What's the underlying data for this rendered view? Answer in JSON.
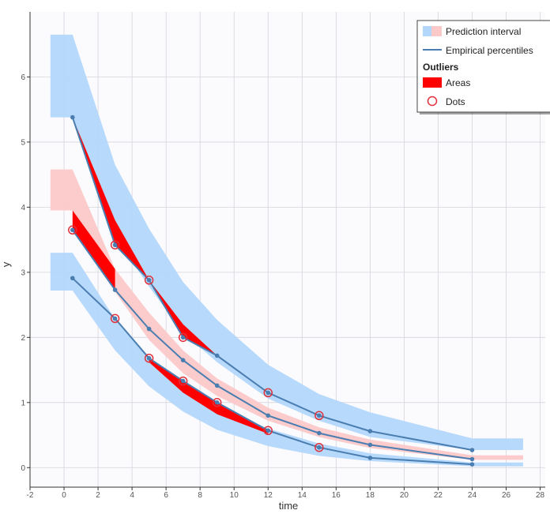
{
  "chart_data": {
    "type": "line",
    "title": "",
    "xlabel": "time",
    "ylabel": "y",
    "xlim": [
      -2,
      28.3
    ],
    "ylim": [
      -0.3,
      7.0
    ],
    "x_ticks": [
      -2,
      0,
      2,
      4,
      6,
      8,
      10,
      12,
      14,
      16,
      18,
      20,
      22,
      24,
      26,
      28
    ],
    "y_ticks": [
      0,
      1,
      2,
      3,
      4,
      5,
      6
    ],
    "grid": true,
    "colors": {
      "upper_lower_band": "#b3d7fb",
      "median_band": "#fcc9c9",
      "percentile_line": "#4a7db0",
      "outlier_area": "#ff0000",
      "outlier_dot": "#e0303a",
      "plot_bg": "#fbfbfe",
      "grid": "#d4d4dc"
    },
    "prediction_interval_bands": [
      {
        "name": "upper",
        "x": [
          -0.8,
          0.5,
          3,
          5,
          7,
          9,
          12,
          15,
          18,
          24,
          27
        ],
        "lo_step": [
          5.38,
          5.38,
          3.55,
          2.78,
          2.07,
          1.62,
          1.06,
          0.72,
          0.47,
          0.27,
          0.27
        ],
        "hi_step": [
          6.65,
          6.65,
          4.65,
          3.67,
          2.85,
          2.27,
          1.58,
          1.13,
          0.85,
          0.45,
          0.45
        ]
      },
      {
        "name": "median",
        "x": [
          -0.8,
          0.5,
          3,
          5,
          7,
          9,
          12,
          15,
          18,
          24,
          27
        ],
        "lo_step": [
          3.95,
          3.95,
          2.7,
          1.96,
          1.45,
          1.1,
          0.72,
          0.47,
          0.3,
          0.12,
          0.12
        ],
        "hi_step": [
          4.58,
          4.58,
          3.05,
          2.38,
          1.8,
          1.37,
          0.92,
          0.62,
          0.43,
          0.19,
          0.19
        ]
      },
      {
        "name": "lower",
        "x": [
          -0.8,
          0.5,
          3,
          5,
          7,
          9,
          12,
          15,
          18,
          24,
          27
        ],
        "lo_step": [
          2.72,
          2.72,
          1.8,
          1.25,
          0.86,
          0.58,
          0.33,
          0.18,
          0.1,
          0.02,
          0.02
        ],
        "hi_step": [
          3.3,
          3.3,
          2.28,
          1.68,
          1.24,
          0.95,
          0.6,
          0.37,
          0.22,
          0.08,
          0.08
        ]
      }
    ],
    "series": [
      {
        "name": "Empirical percentile upper",
        "x": [
          0.5,
          3,
          5,
          7,
          9,
          12,
          15,
          18,
          24
        ],
        "y": [
          5.38,
          3.42,
          2.88,
          2.0,
          1.72,
          1.15,
          0.8,
          0.56,
          0.27
        ]
      },
      {
        "name": "Empirical percentile median",
        "x": [
          0.5,
          3,
          5,
          7,
          9,
          12,
          15,
          18,
          24
        ],
        "y": [
          3.65,
          2.73,
          2.13,
          1.65,
          1.26,
          0.8,
          0.53,
          0.35,
          0.13
        ]
      },
      {
        "name": "Empirical percentile lower",
        "x": [
          0.5,
          3,
          5,
          7,
          9,
          12,
          15,
          18,
          24
        ],
        "y": [
          2.91,
          2.29,
          1.68,
          1.33,
          1.0,
          0.57,
          0.31,
          0.15,
          0.05
        ]
      }
    ],
    "outlier_areas": [
      {
        "x": [
          0.5,
          0.5,
          3,
          3
        ],
        "y": [
          3.65,
          3.95,
          3.05,
          2.73
        ]
      },
      {
        "x": [
          0.5,
          3,
          5,
          3
        ],
        "y": [
          5.38,
          3.8,
          2.88,
          3.42
        ]
      },
      {
        "x": [
          5,
          7,
          9,
          7
        ],
        "y": [
          2.88,
          2.2,
          1.72,
          2.0
        ]
      },
      {
        "x": [
          5,
          7,
          9,
          12,
          12,
          9,
          7,
          5
        ],
        "y": [
          1.68,
          1.33,
          1.0,
          0.57,
          0.52,
          0.82,
          1.15,
          1.62
        ]
      }
    ],
    "outlier_dots": [
      {
        "x": 0.5,
        "y": 3.65
      },
      {
        "x": 3,
        "y": 3.42
      },
      {
        "x": 3,
        "y": 2.29
      },
      {
        "x": 5,
        "y": 2.88
      },
      {
        "x": 5,
        "y": 1.68
      },
      {
        "x": 7,
        "y": 2.0
      },
      {
        "x": 7,
        "y": 1.33
      },
      {
        "x": 9,
        "y": 1.0
      },
      {
        "x": 12,
        "y": 1.15
      },
      {
        "x": 12,
        "y": 0.57
      },
      {
        "x": 15,
        "y": 0.8
      },
      {
        "x": 15,
        "y": 0.31
      }
    ],
    "legend": {
      "position": "top-right",
      "prediction_interval": "Prediction interval",
      "empirical_percentiles": "Empirical percentiles",
      "outliers_header": "Outliers",
      "areas": "Areas",
      "dots": "Dots"
    }
  }
}
